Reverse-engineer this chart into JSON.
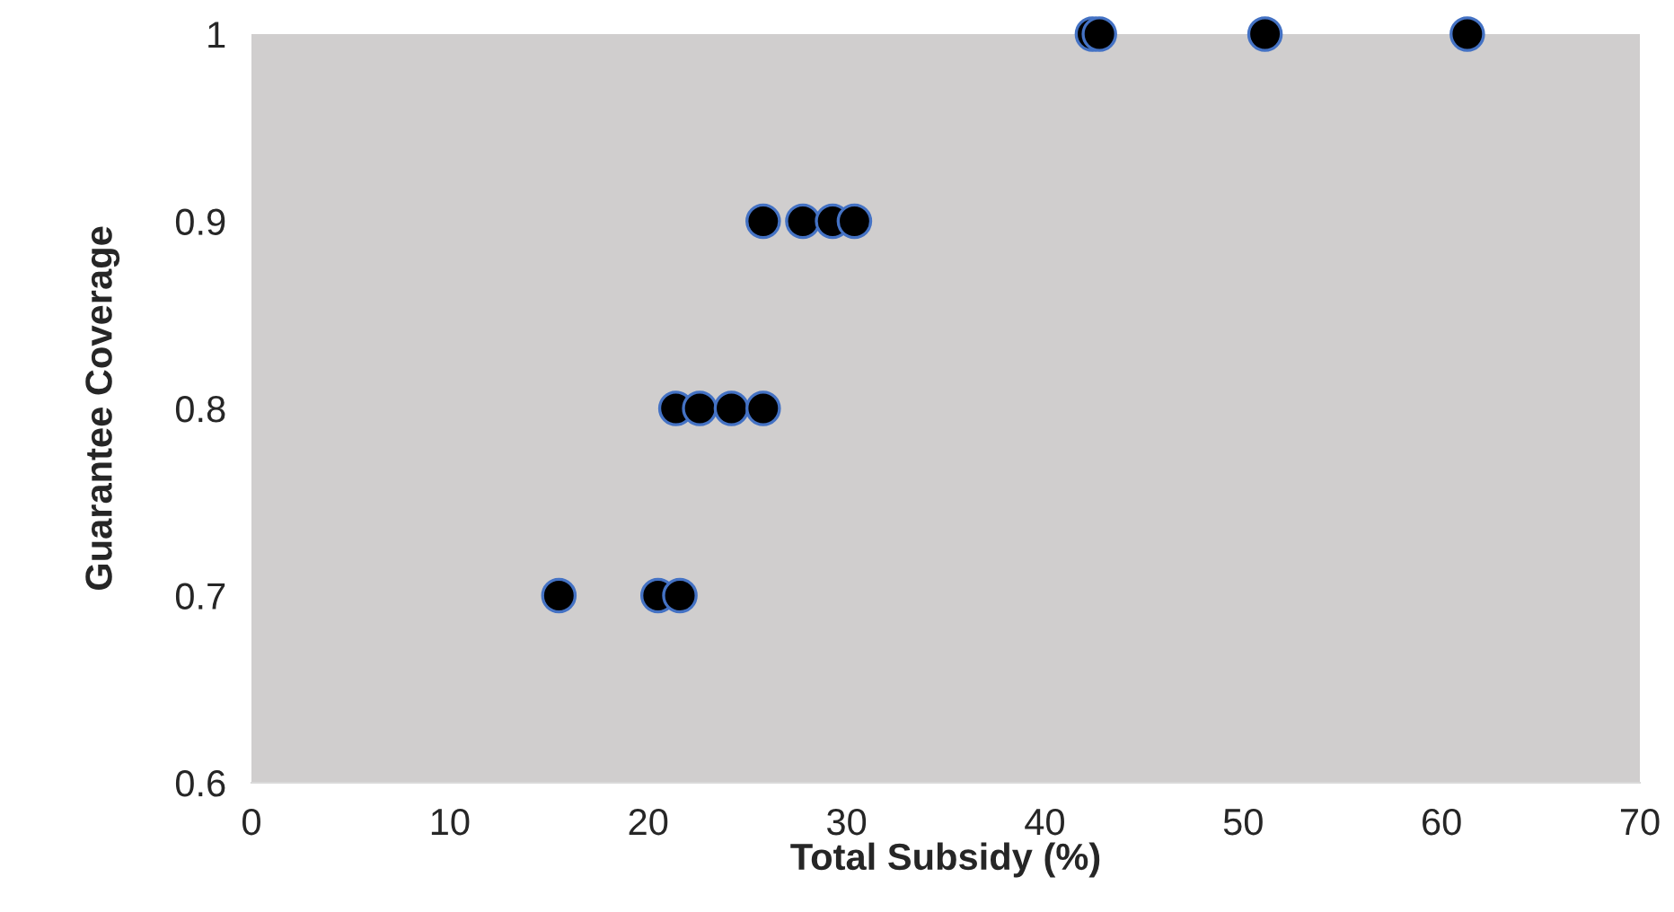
{
  "chart_data": {
    "type": "scatter",
    "xlabel": "Total Subsidy (%)",
    "ylabel": "Guarantee Coverage",
    "series": [
      {
        "color": "#000000",
        "x": [
          42.4,
          42.75,
          51.1,
          61.3,
          25.8,
          27.8,
          29.3,
          30.4,
          21.4,
          22.6,
          24.2,
          25.8,
          15.5,
          20.5,
          21.6
        ],
        "values": [
          1,
          1,
          1,
          1,
          0.9,
          0.9,
          0.9,
          0.9,
          0.8,
          0.8,
          0.8,
          0.8,
          0.7,
          0.7,
          0.7
        ]
      }
    ],
    "xlim": [
      0,
      70
    ],
    "xticks": [
      0,
      10,
      20,
      30,
      40,
      50,
      60,
      70
    ],
    "ylim": [
      0.6,
      1
    ],
    "yticks": [
      0.6,
      0.7,
      0.8,
      0.9,
      1
    ],
    "marker": "circle"
  }
}
